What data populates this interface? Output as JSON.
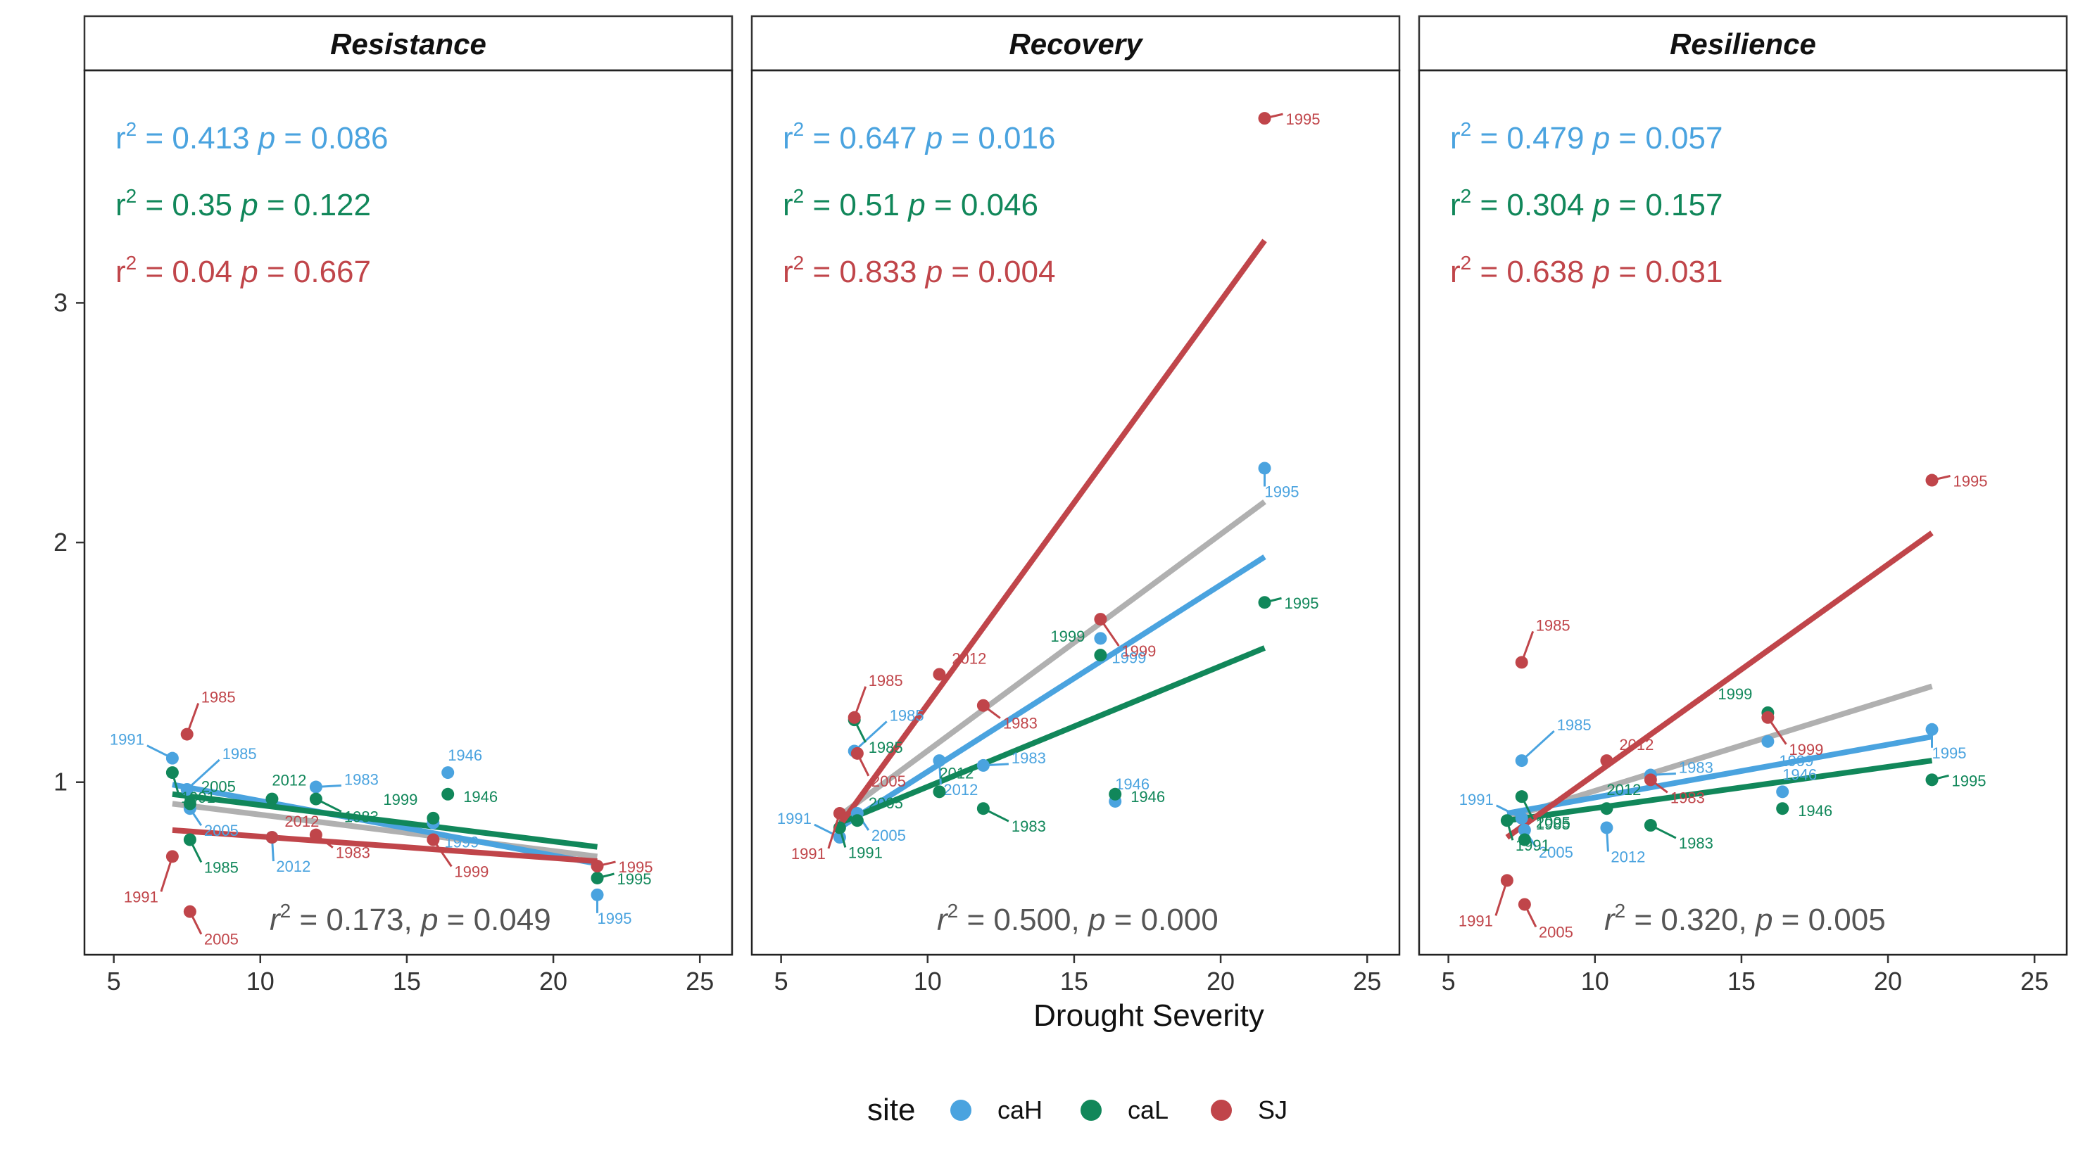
{
  "colors": {
    "caH": "#4aa3df",
    "caL": "#11875a",
    "SJ": "#c0454a",
    "overall": "#b0b0b0"
  },
  "axis": {
    "xlabel": "Drought Severity",
    "xlim": [
      4,
      26.1
    ],
    "ylim": [
      0.28,
      3.97
    ],
    "xticks": [
      5,
      10,
      15,
      20,
      25
    ],
    "yticks": [
      1,
      2,
      3
    ]
  },
  "legend": {
    "title": "site",
    "items": [
      {
        "key": "caH",
        "label": "caH"
      },
      {
        "key": "caL",
        "label": "caL"
      },
      {
        "key": "SJ",
        "label": "SJ"
      }
    ]
  },
  "chart_data": [
    {
      "type": "scatter",
      "title": "Resistance",
      "stats": [
        {
          "site": "caH",
          "r2": "0.413",
          "p": "0.086"
        },
        {
          "site": "caL",
          "r2": "0.35",
          "p": "0.122"
        },
        {
          "site": "SJ",
          "r2": "0.04",
          "p": "0.667"
        }
      ],
      "overall": {
        "r2": "0.173",
        "p": "0.049"
      },
      "fits": [
        {
          "site": "overall",
          "x": [
            7,
            21.5
          ],
          "y": [
            0.91,
            0.69
          ]
        },
        {
          "site": "caH",
          "x": [
            7,
            21.5
          ],
          "y": [
            0.99,
            0.66
          ]
        },
        {
          "site": "caL",
          "x": [
            7,
            21.5
          ],
          "y": [
            0.95,
            0.73
          ]
        },
        {
          "site": "SJ",
          "x": [
            7,
            21.5
          ],
          "y": [
            0.8,
            0.67
          ]
        }
      ],
      "series": [
        {
          "name": "caH",
          "points": [
            {
              "year": "1991",
              "x": 7.0,
              "y": 1.1
            },
            {
              "year": "1985",
              "x": 7.5,
              "y": 0.97
            },
            {
              "year": "2005",
              "x": 7.6,
              "y": 0.89
            },
            {
              "year": "2012",
              "x": 10.4,
              "y": 0.77
            },
            {
              "year": "1983",
              "x": 11.9,
              "y": 0.98
            },
            {
              "year": "1946",
              "x": 16.4,
              "y": 1.04
            },
            {
              "year": "1999",
              "x": 15.9,
              "y": 0.83
            },
            {
              "year": "1995",
              "x": 21.5,
              "y": 0.53
            }
          ]
        },
        {
          "name": "caL",
          "points": [
            {
              "year": "1991",
              "x": 7.0,
              "y": 1.04
            },
            {
              "year": "1985",
              "x": 7.6,
              "y": 0.76
            },
            {
              "year": "2005",
              "x": 7.6,
              "y": 0.91
            },
            {
              "year": "2012",
              "x": 10.4,
              "y": 0.93
            },
            {
              "year": "1983",
              "x": 11.9,
              "y": 0.93
            },
            {
              "year": "1946",
              "x": 16.4,
              "y": 0.95
            },
            {
              "year": "1999",
              "x": 15.9,
              "y": 0.85
            },
            {
              "year": "1995",
              "x": 21.5,
              "y": 0.6
            }
          ]
        },
        {
          "name": "SJ",
          "points": [
            {
              "year": "1991",
              "x": 7.0,
              "y": 0.69
            },
            {
              "year": "1985",
              "x": 7.5,
              "y": 1.2
            },
            {
              "year": "2005",
              "x": 7.6,
              "y": 0.46
            },
            {
              "year": "2012",
              "x": 10.4,
              "y": 0.77
            },
            {
              "year": "1983",
              "x": 11.9,
              "y": 0.78
            },
            {
              "year": "1999",
              "x": 15.9,
              "y": 0.76
            },
            {
              "year": "1995",
              "x": 21.5,
              "y": 0.65
            }
          ]
        }
      ]
    },
    {
      "type": "scatter",
      "title": "Recovery",
      "stats": [
        {
          "site": "caH",
          "r2": "0.647",
          "p": "0.016"
        },
        {
          "site": "caL",
          "r2": "0.51",
          "p": "0.046"
        },
        {
          "site": "SJ",
          "r2": "0.833",
          "p": "0.004"
        }
      ],
      "overall": {
        "r2": "0.500",
        "p": "0.000"
      },
      "fits": [
        {
          "site": "overall",
          "x": [
            7,
            21.5
          ],
          "y": [
            0.86,
            2.17
          ]
        },
        {
          "site": "caH",
          "x": [
            7,
            21.5
          ],
          "y": [
            0.81,
            1.94
          ]
        },
        {
          "site": "caL",
          "x": [
            7,
            21.5
          ],
          "y": [
            0.83,
            1.56
          ]
        },
        {
          "site": "SJ",
          "x": [
            7,
            21.5
          ],
          "y": [
            0.82,
            3.26
          ]
        }
      ],
      "series": [
        {
          "name": "caH",
          "points": [
            {
              "year": "1991",
              "x": 7.0,
              "y": 0.77
            },
            {
              "year": "1985",
              "x": 7.5,
              "y": 1.13
            },
            {
              "year": "2005",
              "x": 7.6,
              "y": 0.87
            },
            {
              "year": "2012",
              "x": 10.4,
              "y": 1.09
            },
            {
              "year": "1983",
              "x": 11.9,
              "y": 1.07
            },
            {
              "year": "1999",
              "x": 15.9,
              "y": 1.6
            },
            {
              "year": "1946",
              "x": 16.4,
              "y": 0.92
            },
            {
              "year": "1995",
              "x": 21.5,
              "y": 2.31
            }
          ]
        },
        {
          "name": "caL",
          "points": [
            {
              "year": "1991",
              "x": 7.0,
              "y": 0.81
            },
            {
              "year": "1985",
              "x": 7.5,
              "y": 1.26
            },
            {
              "year": "2005",
              "x": 7.6,
              "y": 0.84
            },
            {
              "year": "2012",
              "x": 10.4,
              "y": 0.96
            },
            {
              "year": "1983",
              "x": 11.9,
              "y": 0.89
            },
            {
              "year": "1999",
              "x": 15.9,
              "y": 1.53
            },
            {
              "year": "1946",
              "x": 16.4,
              "y": 0.95
            },
            {
              "year": "1995",
              "x": 21.5,
              "y": 1.75
            }
          ]
        },
        {
          "name": "SJ",
          "points": [
            {
              "year": "1991",
              "x": 7.0,
              "y": 0.87
            },
            {
              "year": "1985",
              "x": 7.5,
              "y": 1.27
            },
            {
              "year": "2005",
              "x": 7.6,
              "y": 1.12
            },
            {
              "year": "2012",
              "x": 10.4,
              "y": 1.45
            },
            {
              "year": "1983",
              "x": 11.9,
              "y": 1.32
            },
            {
              "year": "1999",
              "x": 15.9,
              "y": 1.68
            },
            {
              "year": "1995",
              "x": 21.5,
              "y": 3.77
            }
          ]
        }
      ]
    },
    {
      "type": "scatter",
      "title": "Resilience",
      "stats": [
        {
          "site": "caH",
          "r2": "0.479",
          "p": "0.057"
        },
        {
          "site": "caL",
          "r2": "0.304",
          "p": "0.157"
        },
        {
          "site": "SJ",
          "r2": "0.638",
          "p": "0.031"
        }
      ],
      "overall": {
        "r2": "0.320",
        "p": "0.005"
      },
      "fits": [
        {
          "site": "overall",
          "x": [
            7,
            21.5
          ],
          "y": [
            0.85,
            1.4
          ]
        },
        {
          "site": "caH",
          "x": [
            7,
            21.5
          ],
          "y": [
            0.87,
            1.19
          ]
        },
        {
          "site": "caL",
          "x": [
            7,
            21.5
          ],
          "y": [
            0.84,
            1.09
          ]
        },
        {
          "site": "SJ",
          "x": [
            7,
            21.5
          ],
          "y": [
            0.77,
            2.04
          ]
        }
      ],
      "series": [
        {
          "name": "caH",
          "points": [
            {
              "year": "1985",
              "x": 7.5,
              "y": 1.09
            },
            {
              "year": "1991",
              "x": 7.5,
              "y": 0.85
            },
            {
              "year": "2005",
              "x": 7.6,
              "y": 0.8
            },
            {
              "year": "2012",
              "x": 10.4,
              "y": 0.81
            },
            {
              "year": "1983",
              "x": 11.9,
              "y": 1.03
            },
            {
              "year": "1999",
              "x": 15.9,
              "y": 1.17
            },
            {
              "year": "1946",
              "x": 16.4,
              "y": 0.96
            },
            {
              "year": "1995",
              "x": 21.5,
              "y": 1.22
            }
          ]
        },
        {
          "name": "caL",
          "points": [
            {
              "year": "1991",
              "x": 7.0,
              "y": 0.84
            },
            {
              "year": "1985",
              "x": 7.5,
              "y": 0.94
            },
            {
              "year": "2005",
              "x": 7.6,
              "y": 0.76
            },
            {
              "year": "2012",
              "x": 10.4,
              "y": 0.89
            },
            {
              "year": "1983",
              "x": 11.9,
              "y": 0.82
            },
            {
              "year": "1999",
              "x": 15.9,
              "y": 1.29
            },
            {
              "year": "1946",
              "x": 16.4,
              "y": 0.89
            },
            {
              "year": "1995",
              "x": 21.5,
              "y": 1.01
            }
          ]
        },
        {
          "name": "SJ",
          "points": [
            {
              "year": "1991",
              "x": 7.0,
              "y": 0.59
            },
            {
              "year": "1985",
              "x": 7.5,
              "y": 1.5
            },
            {
              "year": "2005",
              "x": 7.6,
              "y": 0.49
            },
            {
              "year": "2012",
              "x": 10.4,
              "y": 1.09
            },
            {
              "year": "1983",
              "x": 11.9,
              "y": 1.01
            },
            {
              "year": "1999",
              "x": 15.9,
              "y": 1.27
            },
            {
              "year": "1995",
              "x": 21.5,
              "y": 2.26
            }
          ]
        }
      ]
    }
  ]
}
